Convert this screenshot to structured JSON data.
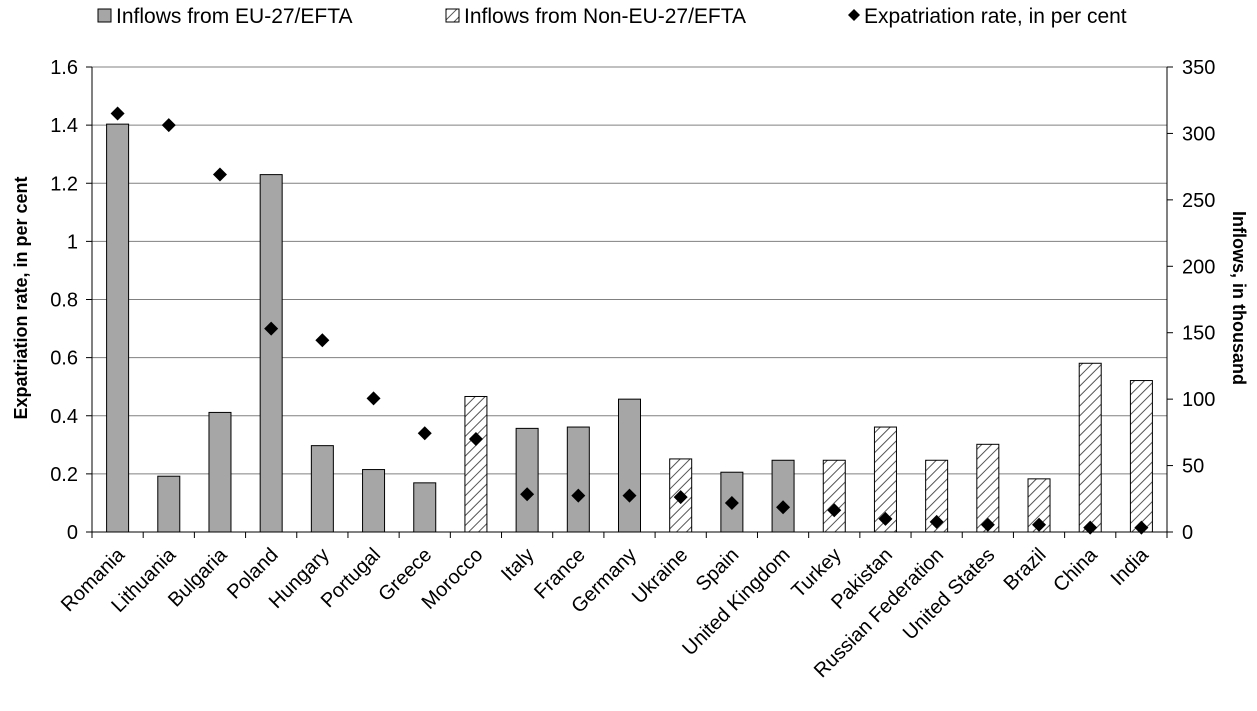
{
  "chart_data": {
    "type": "bar",
    "categories": [
      "Romania",
      "Lithuania",
      "Bulgaria",
      "Poland",
      "Hungary",
      "Portugal",
      "Greece",
      "Morocco",
      "Italy",
      "France",
      "Germany",
      "Ukraine",
      "Spain",
      "United Kingdom",
      "Turkey",
      "Pakistan",
      "Russian Federation",
      "United States",
      "Brazil",
      "China",
      "India"
    ],
    "series": [
      {
        "name": "Inflows from EU-27/EFTA",
        "kind": "bar",
        "axis": "right",
        "style": "solid",
        "color": "#a6a6a6",
        "values": [
          307,
          42,
          90,
          269,
          65,
          47,
          37,
          null,
          78,
          79,
          100,
          null,
          45,
          54,
          null,
          null,
          null,
          null,
          null,
          null,
          null
        ]
      },
      {
        "name": "Inflows from Non-EU-27/EFTA",
        "kind": "bar",
        "axis": "right",
        "style": "hatched",
        "color": "#ffffff",
        "values": [
          null,
          null,
          null,
          null,
          null,
          null,
          null,
          102,
          null,
          null,
          null,
          55,
          null,
          null,
          54,
          79,
          54,
          66,
          40,
          127,
          114
        ]
      },
      {
        "name": "Expatriation rate, in per cent",
        "kind": "marker",
        "axis": "left",
        "color": "#000000",
        "values": [
          1.44,
          1.4,
          1.23,
          0.7,
          0.66,
          0.46,
          0.34,
          0.32,
          0.13,
          0.125,
          0.125,
          0.12,
          0.1,
          0.085,
          0.075,
          0.045,
          0.035,
          0.025,
          0.025,
          0.015,
          0.015
        ]
      }
    ],
    "axes": {
      "left": {
        "label": "Expatriation rate, in per cent",
        "min": 0,
        "max": 1.6,
        "ticks": [
          "0",
          "0.2",
          "0.4",
          "0.6",
          "0.8",
          "1",
          "1.2",
          "1.4",
          "1.6"
        ]
      },
      "right": {
        "label": "Inflows, in thousand",
        "min": 0,
        "max": 350,
        "ticks": [
          "0",
          "50",
          "100",
          "150",
          "200",
          "250",
          "300",
          "350"
        ]
      }
    },
    "grid": true,
    "legend_position": "top"
  }
}
